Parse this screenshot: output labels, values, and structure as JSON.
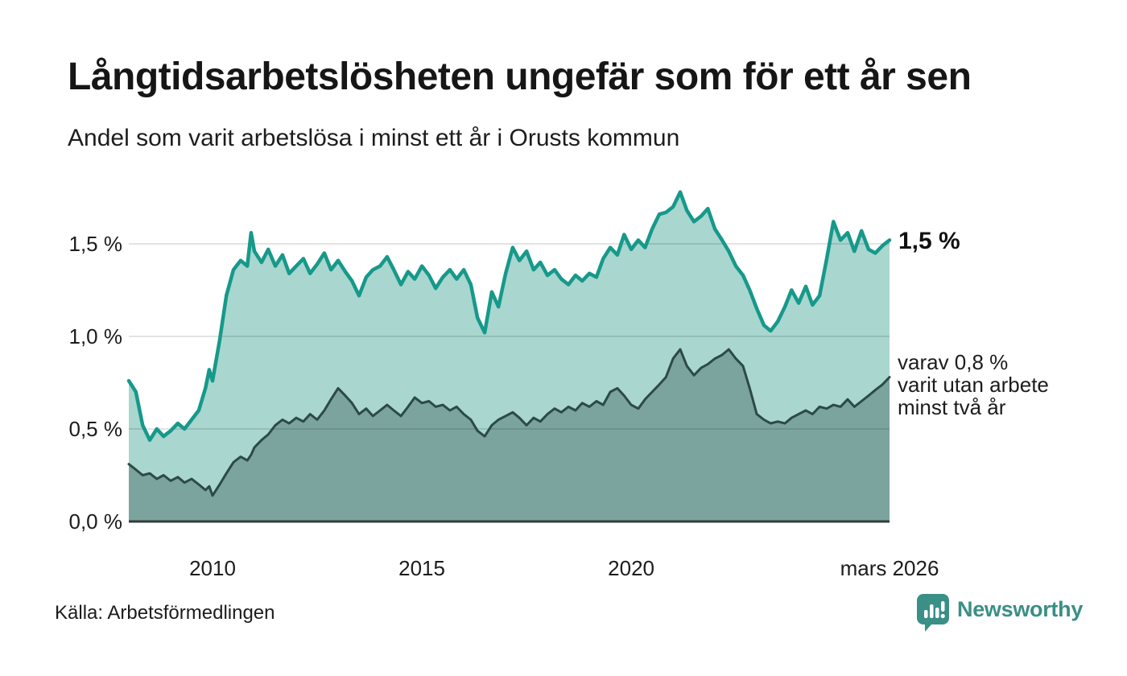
{
  "header": {
    "title": "Långtidsarbetslösheten ungefär som för ett år sen",
    "subtitle": "Andel som varit arbetslösa i minst ett år i Orusts kommun"
  },
  "annotations": {
    "latest_total": "1,5 %",
    "secondary": [
      "varav 0,8 %",
      "varit utan arbete",
      "minst två år"
    ]
  },
  "footer": {
    "source": "Källa: Arbetsförmedlingen",
    "brand": "Newsworthy"
  },
  "colors": {
    "teal_line": "#16998a",
    "teal_fill": "#a9d6cf",
    "dark_fill": "#7aa49d",
    "dark_line": "#2d4a45",
    "baseline": "#343c3a",
    "gridline": "rgba(0,0,0,0.11)",
    "brand_teal": "#3a8f86"
  },
  "chart_data": {
    "type": "area",
    "title": "Andel som varit arbetslösa i minst ett år i Orusts kommun",
    "xlabel": "",
    "ylabel": "",
    "x_domain": [
      2008.0,
      2026.17
    ],
    "y_domain": [
      0,
      1.82
    ],
    "grid": "horizontal",
    "legend_position": "right-annotations",
    "yticks": [
      {
        "label": "1,5 %",
        "value": 1.5
      },
      {
        "label": "1,0 %",
        "value": 1.0
      },
      {
        "label": "0,5 %",
        "value": 0.5
      },
      {
        "label": "0,0 %",
        "value": 0.0
      }
    ],
    "xticks": [
      {
        "label": "2010",
        "value": 2010
      },
      {
        "label": "2015",
        "value": 2015
      },
      {
        "label": "2020",
        "value": 2020
      },
      {
        "label": "mars 2026",
        "value": 2026.17
      }
    ],
    "series": [
      {
        "id": "min-one-year",
        "label": "1,5 %",
        "color": "#16998a",
        "fill": "#a9d6cf",
        "stroke_width": 4.5,
        "values": [
          [
            2008.0,
            0.76
          ],
          [
            2008.17,
            0.7
          ],
          [
            2008.33,
            0.52
          ],
          [
            2008.5,
            0.44
          ],
          [
            2008.67,
            0.5
          ],
          [
            2008.83,
            0.46
          ],
          [
            2009.0,
            0.49
          ],
          [
            2009.17,
            0.53
          ],
          [
            2009.33,
            0.5
          ],
          [
            2009.5,
            0.55
          ],
          [
            2009.67,
            0.6
          ],
          [
            2009.83,
            0.72
          ],
          [
            2009.92,
            0.82
          ],
          [
            2010.0,
            0.76
          ],
          [
            2010.17,
            0.98
          ],
          [
            2010.33,
            1.22
          ],
          [
            2010.5,
            1.36
          ],
          [
            2010.67,
            1.41
          ],
          [
            2010.83,
            1.38
          ],
          [
            2010.92,
            1.56
          ],
          [
            2011.0,
            1.46
          ],
          [
            2011.17,
            1.4
          ],
          [
            2011.33,
            1.47
          ],
          [
            2011.5,
            1.38
          ],
          [
            2011.67,
            1.44
          ],
          [
            2011.83,
            1.34
          ],
          [
            2012.0,
            1.38
          ],
          [
            2012.17,
            1.42
          ],
          [
            2012.33,
            1.34
          ],
          [
            2012.5,
            1.39
          ],
          [
            2012.67,
            1.45
          ],
          [
            2012.83,
            1.36
          ],
          [
            2013.0,
            1.41
          ],
          [
            2013.17,
            1.35
          ],
          [
            2013.33,
            1.3
          ],
          [
            2013.5,
            1.22
          ],
          [
            2013.67,
            1.32
          ],
          [
            2013.83,
            1.36
          ],
          [
            2014.0,
            1.38
          ],
          [
            2014.17,
            1.43
          ],
          [
            2014.33,
            1.36
          ],
          [
            2014.5,
            1.28
          ],
          [
            2014.67,
            1.35
          ],
          [
            2014.83,
            1.31
          ],
          [
            2015.0,
            1.38
          ],
          [
            2015.17,
            1.33
          ],
          [
            2015.33,
            1.26
          ],
          [
            2015.5,
            1.32
          ],
          [
            2015.67,
            1.36
          ],
          [
            2015.83,
            1.31
          ],
          [
            2016.0,
            1.36
          ],
          [
            2016.17,
            1.28
          ],
          [
            2016.33,
            1.1
          ],
          [
            2016.5,
            1.02
          ],
          [
            2016.67,
            1.24
          ],
          [
            2016.83,
            1.16
          ],
          [
            2017.0,
            1.34
          ],
          [
            2017.17,
            1.48
          ],
          [
            2017.33,
            1.41
          ],
          [
            2017.5,
            1.46
          ],
          [
            2017.67,
            1.36
          ],
          [
            2017.83,
            1.4
          ],
          [
            2018.0,
            1.33
          ],
          [
            2018.17,
            1.36
          ],
          [
            2018.33,
            1.31
          ],
          [
            2018.5,
            1.28
          ],
          [
            2018.67,
            1.33
          ],
          [
            2018.83,
            1.3
          ],
          [
            2019.0,
            1.34
          ],
          [
            2019.17,
            1.32
          ],
          [
            2019.33,
            1.42
          ],
          [
            2019.5,
            1.48
          ],
          [
            2019.67,
            1.44
          ],
          [
            2019.83,
            1.55
          ],
          [
            2020.0,
            1.47
          ],
          [
            2020.17,
            1.52
          ],
          [
            2020.33,
            1.48
          ],
          [
            2020.5,
            1.58
          ],
          [
            2020.67,
            1.66
          ],
          [
            2020.83,
            1.67
          ],
          [
            2021.0,
            1.7
          ],
          [
            2021.17,
            1.78
          ],
          [
            2021.33,
            1.68
          ],
          [
            2021.5,
            1.62
          ],
          [
            2021.67,
            1.65
          ],
          [
            2021.83,
            1.69
          ],
          [
            2022.0,
            1.58
          ],
          [
            2022.17,
            1.52
          ],
          [
            2022.33,
            1.46
          ],
          [
            2022.5,
            1.38
          ],
          [
            2022.67,
            1.33
          ],
          [
            2022.83,
            1.25
          ],
          [
            2023.0,
            1.15
          ],
          [
            2023.17,
            1.06
          ],
          [
            2023.33,
            1.03
          ],
          [
            2023.5,
            1.08
          ],
          [
            2023.67,
            1.16
          ],
          [
            2023.83,
            1.25
          ],
          [
            2024.0,
            1.18
          ],
          [
            2024.17,
            1.27
          ],
          [
            2024.33,
            1.17
          ],
          [
            2024.5,
            1.22
          ],
          [
            2024.67,
            1.42
          ],
          [
            2024.83,
            1.62
          ],
          [
            2025.0,
            1.52
          ],
          [
            2025.17,
            1.56
          ],
          [
            2025.33,
            1.46
          ],
          [
            2025.5,
            1.57
          ],
          [
            2025.67,
            1.47
          ],
          [
            2025.83,
            1.45
          ],
          [
            2026.0,
            1.49
          ],
          [
            2026.17,
            1.52
          ]
        ]
      },
      {
        "id": "min-two-years",
        "label": "varav 0,8 % varit utan arbete minst två år",
        "color": "#2d4a45",
        "fill": "#7aa49d",
        "stroke_width": 3,
        "values": [
          [
            2008.0,
            0.31
          ],
          [
            2008.17,
            0.28
          ],
          [
            2008.33,
            0.25
          ],
          [
            2008.5,
            0.26
          ],
          [
            2008.67,
            0.23
          ],
          [
            2008.83,
            0.25
          ],
          [
            2009.0,
            0.22
          ],
          [
            2009.17,
            0.24
          ],
          [
            2009.33,
            0.21
          ],
          [
            2009.5,
            0.23
          ],
          [
            2009.67,
            0.2
          ],
          [
            2009.83,
            0.17
          ],
          [
            2009.92,
            0.19
          ],
          [
            2010.0,
            0.14
          ],
          [
            2010.17,
            0.2
          ],
          [
            2010.33,
            0.26
          ],
          [
            2010.5,
            0.32
          ],
          [
            2010.67,
            0.35
          ],
          [
            2010.83,
            0.33
          ],
          [
            2010.92,
            0.36
          ],
          [
            2011.0,
            0.4
          ],
          [
            2011.17,
            0.44
          ],
          [
            2011.33,
            0.47
          ],
          [
            2011.5,
            0.52
          ],
          [
            2011.67,
            0.55
          ],
          [
            2011.83,
            0.53
          ],
          [
            2012.0,
            0.56
          ],
          [
            2012.17,
            0.54
          ],
          [
            2012.33,
            0.58
          ],
          [
            2012.5,
            0.55
          ],
          [
            2012.67,
            0.6
          ],
          [
            2012.83,
            0.66
          ],
          [
            2013.0,
            0.72
          ],
          [
            2013.17,
            0.68
          ],
          [
            2013.33,
            0.64
          ],
          [
            2013.5,
            0.58
          ],
          [
            2013.67,
            0.61
          ],
          [
            2013.83,
            0.57
          ],
          [
            2014.0,
            0.6
          ],
          [
            2014.17,
            0.63
          ],
          [
            2014.33,
            0.6
          ],
          [
            2014.5,
            0.57
          ],
          [
            2014.67,
            0.62
          ],
          [
            2014.83,
            0.67
          ],
          [
            2015.0,
            0.64
          ],
          [
            2015.17,
            0.65
          ],
          [
            2015.33,
            0.62
          ],
          [
            2015.5,
            0.63
          ],
          [
            2015.67,
            0.6
          ],
          [
            2015.83,
            0.62
          ],
          [
            2016.0,
            0.58
          ],
          [
            2016.17,
            0.55
          ],
          [
            2016.33,
            0.49
          ],
          [
            2016.5,
            0.46
          ],
          [
            2016.67,
            0.52
          ],
          [
            2016.83,
            0.55
          ],
          [
            2017.0,
            0.57
          ],
          [
            2017.17,
            0.59
          ],
          [
            2017.33,
            0.56
          ],
          [
            2017.5,
            0.52
          ],
          [
            2017.67,
            0.56
          ],
          [
            2017.83,
            0.54
          ],
          [
            2018.0,
            0.58
          ],
          [
            2018.17,
            0.61
          ],
          [
            2018.33,
            0.59
          ],
          [
            2018.5,
            0.62
          ],
          [
            2018.67,
            0.6
          ],
          [
            2018.83,
            0.64
          ],
          [
            2019.0,
            0.62
          ],
          [
            2019.17,
            0.65
          ],
          [
            2019.33,
            0.63
          ],
          [
            2019.5,
            0.7
          ],
          [
            2019.67,
            0.72
          ],
          [
            2019.83,
            0.68
          ],
          [
            2020.0,
            0.63
          ],
          [
            2020.17,
            0.61
          ],
          [
            2020.33,
            0.66
          ],
          [
            2020.5,
            0.7
          ],
          [
            2020.67,
            0.74
          ],
          [
            2020.83,
            0.78
          ],
          [
            2021.0,
            0.88
          ],
          [
            2021.17,
            0.93
          ],
          [
            2021.33,
            0.84
          ],
          [
            2021.5,
            0.79
          ],
          [
            2021.67,
            0.83
          ],
          [
            2021.83,
            0.85
          ],
          [
            2022.0,
            0.88
          ],
          [
            2022.17,
            0.9
          ],
          [
            2022.33,
            0.93
          ],
          [
            2022.5,
            0.88
          ],
          [
            2022.67,
            0.84
          ],
          [
            2022.83,
            0.72
          ],
          [
            2023.0,
            0.58
          ],
          [
            2023.17,
            0.55
          ],
          [
            2023.33,
            0.53
          ],
          [
            2023.5,
            0.54
          ],
          [
            2023.67,
            0.53
          ],
          [
            2023.83,
            0.56
          ],
          [
            2024.0,
            0.58
          ],
          [
            2024.17,
            0.6
          ],
          [
            2024.33,
            0.58
          ],
          [
            2024.5,
            0.62
          ],
          [
            2024.67,
            0.61
          ],
          [
            2024.83,
            0.63
          ],
          [
            2025.0,
            0.62
          ],
          [
            2025.17,
            0.66
          ],
          [
            2025.33,
            0.62
          ],
          [
            2025.5,
            0.65
          ],
          [
            2025.67,
            0.68
          ],
          [
            2025.83,
            0.71
          ],
          [
            2026.0,
            0.74
          ],
          [
            2026.17,
            0.78
          ]
        ]
      }
    ]
  }
}
